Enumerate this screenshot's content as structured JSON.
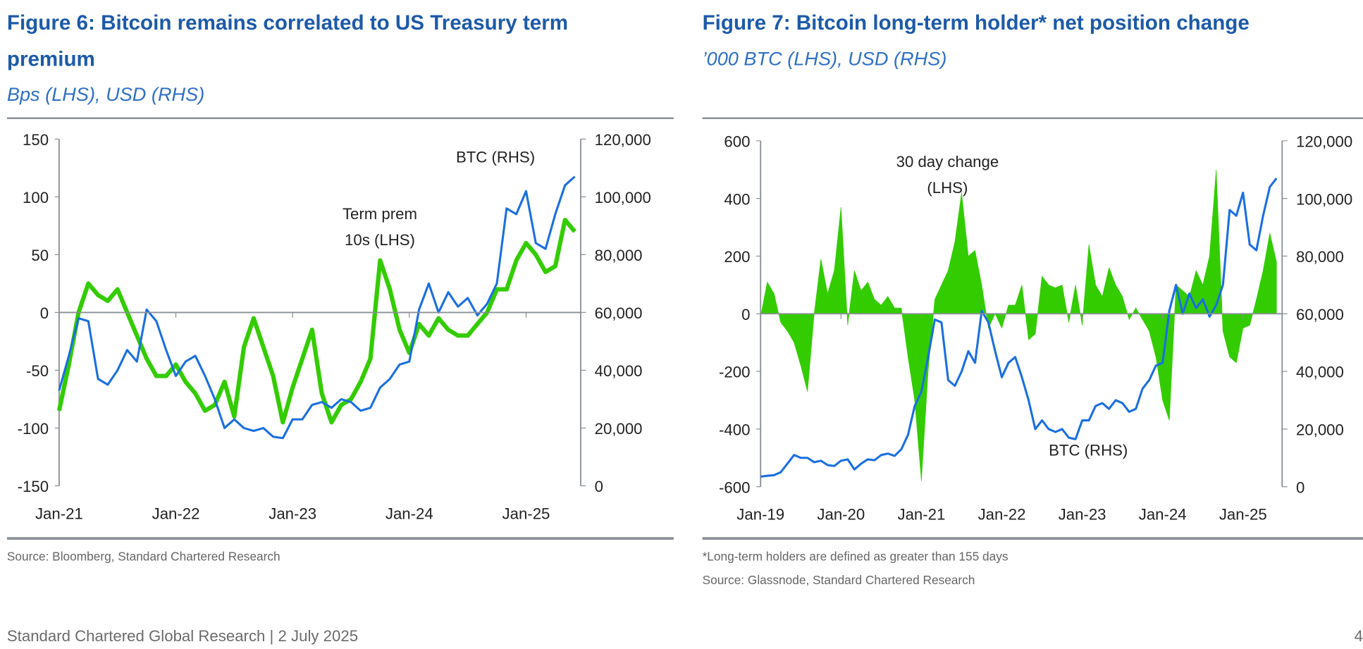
{
  "figure6": {
    "title_line1": "Figure 6: Bitcoin remains correlated to US Treasury term",
    "title_line2": "premium",
    "subtitle": "Bps (LHS), USD (RHS)",
    "source": "Source: Bloomberg, Standard Chartered Research"
  },
  "figure7": {
    "title": "Figure 7: Bitcoin long-term holder* net position change",
    "subtitle": "’000 BTC (LHS), USD (RHS)",
    "footnote": "*Long-term holders are defined as greater than 155 days",
    "source": "Source: Glassnode, Standard Chartered Research"
  },
  "footer": {
    "text": "Standard Chartered Global Research | 2 July 2025",
    "page": "4"
  },
  "colors": {
    "title": "#1d5aa8",
    "green": "#33cc00",
    "blue": "#1a6fe0",
    "axis": "#8a9096"
  },
  "chart_data": [
    {
      "type": "line",
      "x_start": "2021-01",
      "x_frequency": "monthly",
      "x_ticks": [
        "Jan-21",
        "Jan-22",
        "Jan-23",
        "Jan-24",
        "Jan-25"
      ],
      "y_left": {
        "range": [
          -150,
          150
        ],
        "ticks": [
          "150",
          "100",
          "50",
          "0",
          "-50",
          "-100",
          "-150"
        ]
      },
      "y_right": {
        "range": [
          0,
          120000
        ],
        "ticks": [
          "120,000",
          "100,000",
          "80,000",
          "60,000",
          "40,000",
          "20,000",
          "0"
        ]
      },
      "grid": false,
      "series": [
        {
          "name": "Term prem 10s (LHS)",
          "label_lines": [
            "Term prem",
            "10s (LHS)"
          ],
          "axis": "left",
          "color": "#33cc00",
          "values": [
            -85,
            -45,
            0,
            25,
            15,
            10,
            20,
            0,
            -20,
            -40,
            -55,
            -55,
            -45,
            -60,
            -70,
            -85,
            -80,
            -60,
            -90,
            -30,
            -5,
            -30,
            -55,
            -95,
            -65,
            -40,
            -15,
            -70,
            -95,
            -80,
            -75,
            -60,
            -40,
            45,
            20,
            -15,
            -35,
            -10,
            -20,
            -5,
            -15,
            -20,
            -20,
            -10,
            0,
            20,
            20,
            45,
            60,
            50,
            35,
            40,
            80,
            70
          ]
        },
        {
          "name": "BTC (RHS)",
          "label_lines": [
            "BTC (RHS)"
          ],
          "axis": "right",
          "color": "#1a6fe0",
          "values": [
            33000,
            45000,
            58000,
            57000,
            37000,
            35000,
            40000,
            47000,
            43000,
            61000,
            57000,
            47000,
            38000,
            43000,
            45000,
            38000,
            30000,
            20000,
            23000,
            20000,
            19000,
            20000,
            17000,
            16500,
            23000,
            23000,
            28000,
            29000,
            27000,
            30000,
            29000,
            26000,
            27000,
            34000,
            37000,
            42000,
            43000,
            61000,
            70000,
            60000,
            67000,
            62000,
            65000,
            59000,
            63000,
            70000,
            96000,
            94000,
            102000,
            84000,
            82000,
            94000,
            104000,
            107000
          ]
        }
      ]
    },
    {
      "type": "area",
      "x_start": "2019-01",
      "x_frequency": "monthly",
      "x_ticks": [
        "Jan-19",
        "Jan-20",
        "Jan-21",
        "Jan-22",
        "Jan-23",
        "Jan-24",
        "Jan-25"
      ],
      "y_left": {
        "range": [
          -600,
          600
        ],
        "ticks": [
          "600",
          "400",
          "200",
          "0",
          "-200",
          "-400",
          "-600"
        ]
      },
      "y_right": {
        "range": [
          0,
          120000
        ],
        "ticks": [
          "120,000",
          "100,000",
          "80,000",
          "60,000",
          "40,000",
          "20,000",
          "0"
        ]
      },
      "grid": false,
      "series": [
        {
          "name": "30 day change (LHS)",
          "label_lines": [
            "30 day change",
            "(LHS)"
          ],
          "axis": "left",
          "color": "#33cc00",
          "type": "area",
          "values": [
            -10,
            110,
            70,
            -30,
            -60,
            -100,
            -180,
            -270,
            0,
            190,
            70,
            150,
            370,
            -40,
            150,
            80,
            110,
            50,
            30,
            60,
            20,
            20,
            -150,
            -300,
            -580,
            -200,
            50,
            100,
            150,
            250,
            420,
            200,
            220,
            100,
            -50,
            0,
            -50,
            30,
            30,
            100,
            -90,
            -70,
            130,
            100,
            90,
            100,
            -30,
            100,
            -40,
            240,
            100,
            60,
            160,
            100,
            60,
            -20,
            20,
            -20,
            -60,
            -150,
            -300,
            -370,
            100,
            80,
            60,
            150,
            100,
            200,
            500,
            -60,
            -150,
            -170,
            -50,
            -40,
            50,
            150,
            280,
            180
          ]
        },
        {
          "name": "BTC (RHS)",
          "label_lines": [
            "BTC (RHS)"
          ],
          "axis": "right",
          "color": "#1a6fe0",
          "type": "line",
          "values": [
            3500,
            3800,
            4000,
            5000,
            8000,
            11000,
            10000,
            10000,
            8500,
            9000,
            7500,
            7200,
            9000,
            9500,
            6000,
            8000,
            9500,
            9200,
            11000,
            11500,
            10700,
            13000,
            18000,
            28000,
            33000,
            45000,
            58000,
            57000,
            37000,
            35000,
            40000,
            47000,
            43000,
            61000,
            57000,
            47000,
            38000,
            43000,
            45000,
            38000,
            30000,
            20000,
            23000,
            20000,
            19000,
            20000,
            17000,
            16500,
            23000,
            23000,
            28000,
            29000,
            27000,
            30000,
            29000,
            26000,
            27000,
            34000,
            37000,
            42000,
            43000,
            61000,
            70000,
            60000,
            67000,
            62000,
            65000,
            59000,
            63000,
            70000,
            96000,
            94000,
            102000,
            84000,
            82000,
            94000,
            104000,
            107000
          ]
        }
      ]
    }
  ]
}
